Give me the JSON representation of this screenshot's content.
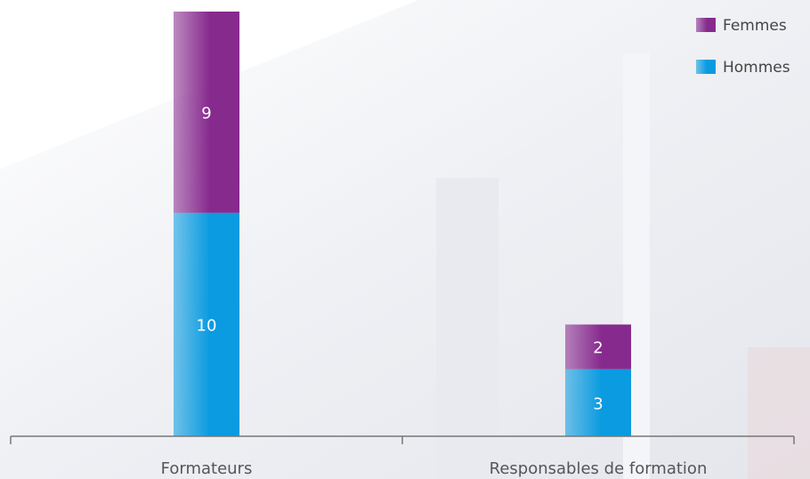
{
  "chart_data": {
    "type": "stacked-bar",
    "categories": [
      "Formateurs",
      "Responsables de formation"
    ],
    "series": [
      {
        "name": "Hommes",
        "color": "#0a9be0",
        "values": [
          10,
          3
        ]
      },
      {
        "name": "Femmes",
        "color": "#872a8e",
        "values": [
          9,
          2
        ]
      }
    ]
  }
}
